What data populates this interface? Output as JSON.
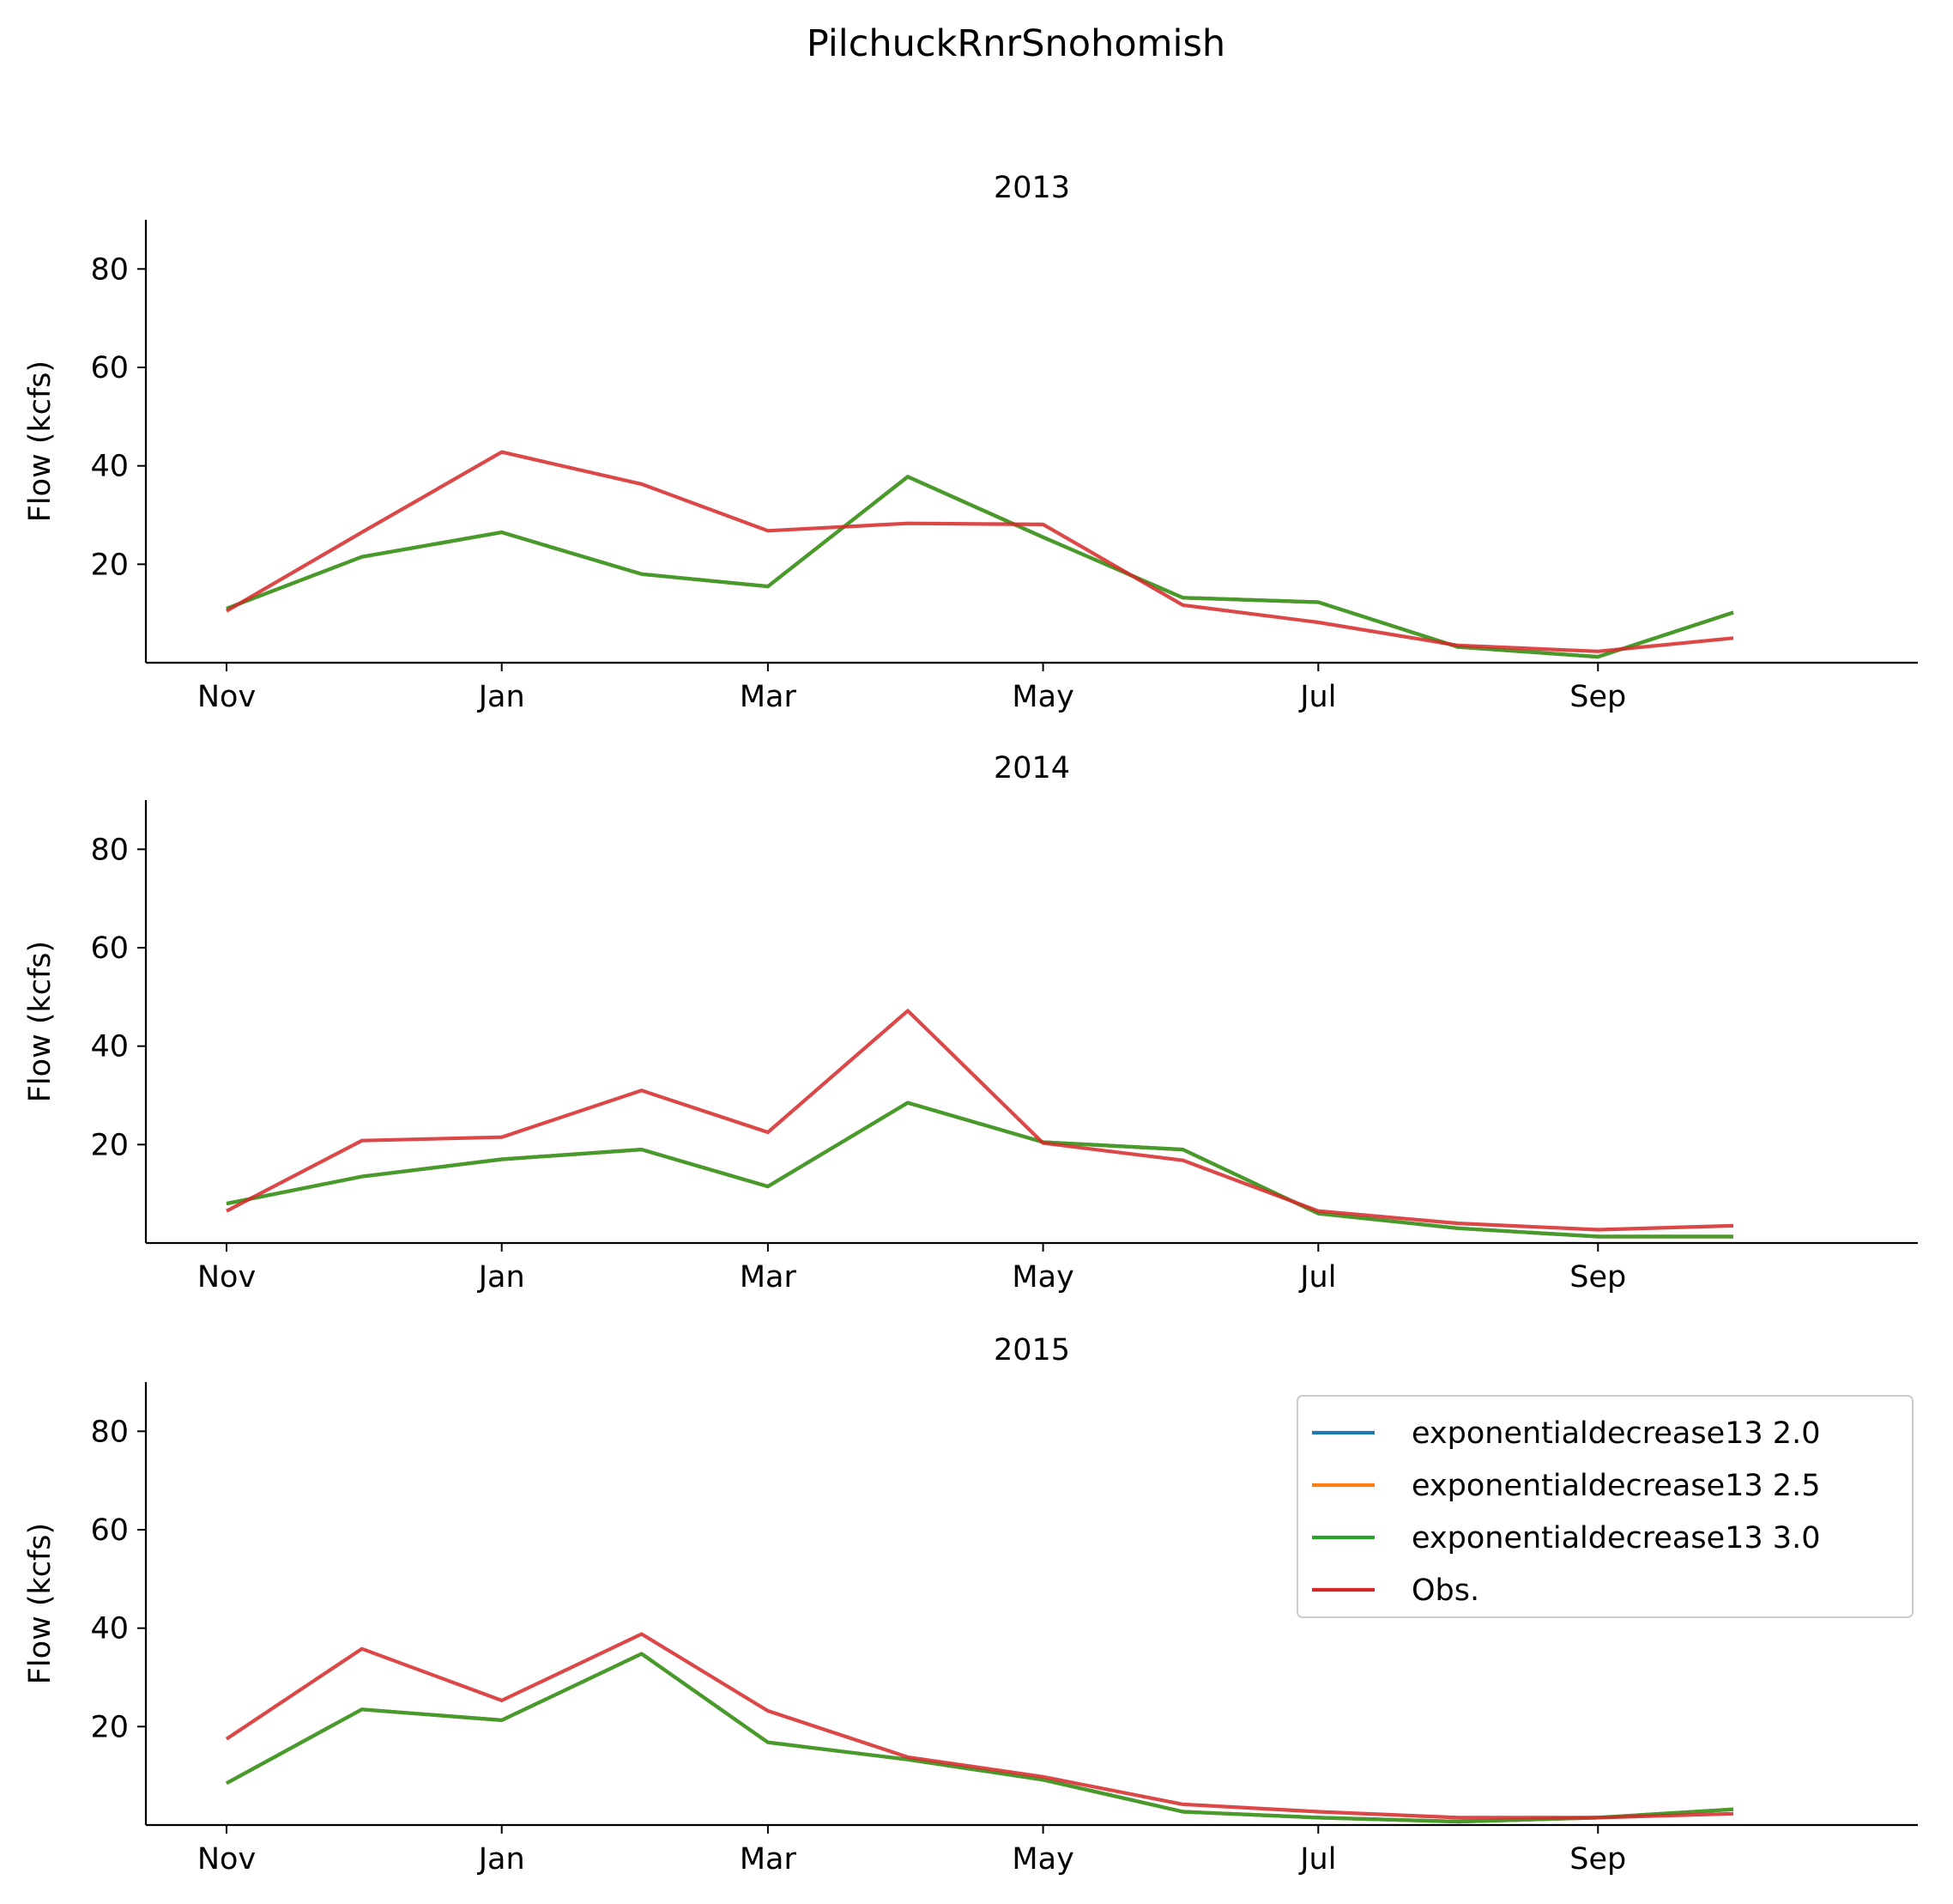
{
  "figure_title": "PilchuckRnrSnohomish",
  "chart_data": [
    {
      "type": "line",
      "title": "2013",
      "ylabel": "Flow (kcfs)",
      "xlabel": "",
      "x_tick_labels": [
        "Nov",
        "Jan",
        "Mar",
        "May",
        "Jul",
        "Sep"
      ],
      "x": [
        "Nov",
        "Dec",
        "Jan",
        "Feb",
        "Mar",
        "Apr",
        "May",
        "Jun",
        "Jul",
        "Aug",
        "Sep",
        "Oct"
      ],
      "yticks": [
        20,
        40,
        60,
        80
      ],
      "ylim": [
        0,
        90
      ],
      "series": [
        {
          "name": "exponentialdecrease13 2.0",
          "color": "#1f77b4",
          "values": [
            11,
            21.5,
            26.5,
            18,
            15.5,
            37.8,
            25.5,
            13.2,
            12.3,
            3.2,
            1.2,
            10.2
          ]
        },
        {
          "name": "exponentialdecrease13 2.5",
          "color": "#ff7f0e",
          "values": [
            11,
            21.5,
            26.5,
            18,
            15.5,
            37.8,
            25.5,
            13.2,
            12.3,
            3.2,
            1.2,
            10.2
          ]
        },
        {
          "name": "exponentialdecrease13 3.0",
          "color": "#2ca02c",
          "values": [
            11,
            21.5,
            26.5,
            18,
            15.5,
            37.8,
            25.5,
            13.2,
            12.3,
            3.2,
            1.2,
            10.2
          ]
        },
        {
          "name": "Obs.",
          "color": "#d62728",
          "values": [
            10.5,
            26.5,
            42.8,
            36.3,
            26.8,
            28.3,
            28.1,
            11.7,
            8.2,
            3.5,
            2.3,
            5
          ]
        }
      ]
    },
    {
      "type": "line",
      "title": "2014",
      "ylabel": "Flow (kcfs)",
      "xlabel": "",
      "x_tick_labels": [
        "Nov",
        "Jan",
        "Mar",
        "May",
        "Jul",
        "Sep"
      ],
      "x": [
        "Nov",
        "Dec",
        "Jan",
        "Feb",
        "Mar",
        "Apr",
        "May",
        "Jun",
        "Jul",
        "Aug",
        "Sep",
        "Oct"
      ],
      "yticks": [
        20,
        40,
        60,
        80
      ],
      "ylim": [
        0,
        90
      ],
      "series": [
        {
          "name": "exponentialdecrease13 2.0",
          "color": "#1f77b4",
          "values": [
            8,
            13.5,
            17,
            19,
            11.5,
            28.5,
            20.5,
            19,
            6,
            3,
            1.3,
            1.3
          ]
        },
        {
          "name": "exponentialdecrease13 2.5",
          "color": "#ff7f0e",
          "values": [
            8,
            13.5,
            17,
            19,
            11.5,
            28.5,
            20.5,
            19,
            6,
            3,
            1.3,
            1.3
          ]
        },
        {
          "name": "exponentialdecrease13 3.0",
          "color": "#2ca02c",
          "values": [
            8,
            13.5,
            17,
            19,
            11.5,
            28.5,
            20.5,
            19,
            6,
            3,
            1.3,
            1.3
          ]
        },
        {
          "name": "Obs.",
          "color": "#d62728",
          "values": [
            6.5,
            20.8,
            21.5,
            31,
            22.5,
            47.2,
            20.3,
            16.8,
            6.5,
            4,
            2.7,
            3.5
          ]
        }
      ]
    },
    {
      "type": "line",
      "title": "2015",
      "ylabel": "Flow (kcfs)",
      "xlabel": "",
      "x_tick_labels": [
        "Nov",
        "Jan",
        "Mar",
        "May",
        "Jul",
        "Sep"
      ],
      "x": [
        "Nov",
        "Dec",
        "Jan",
        "Feb",
        "Mar",
        "Apr",
        "May",
        "Jun",
        "Jul",
        "Aug",
        "Sep",
        "Oct"
      ],
      "yticks": [
        20,
        40,
        60,
        80
      ],
      "ylim": [
        0,
        90
      ],
      "legend_position": "upper right",
      "series": [
        {
          "name": "exponentialdecrease13 2.0",
          "color": "#1f77b4",
          "values": [
            8.5,
            23.5,
            21.3,
            34.8,
            16.8,
            13.3,
            9.2,
            2.7,
            1.5,
            0.7,
            1.5,
            3.2
          ]
        },
        {
          "name": "exponentialdecrease13 2.5",
          "color": "#ff7f0e",
          "values": [
            8.5,
            23.5,
            21.3,
            34.8,
            16.8,
            13.3,
            9.2,
            2.7,
            1.5,
            0.7,
            1.5,
            3.2
          ]
        },
        {
          "name": "exponentialdecrease13 3.0",
          "color": "#2ca02c",
          "values": [
            8.5,
            23.5,
            21.3,
            34.8,
            16.8,
            13.3,
            9.2,
            2.7,
            1.5,
            0.7,
            1.5,
            3.2
          ]
        },
        {
          "name": "Obs.",
          "color": "#d62728",
          "values": [
            17.5,
            35.8,
            25.3,
            38.8,
            23.2,
            13.8,
            9.8,
            4.2,
            2.7,
            1.5,
            1.5,
            2.3
          ]
        }
      ]
    }
  ]
}
